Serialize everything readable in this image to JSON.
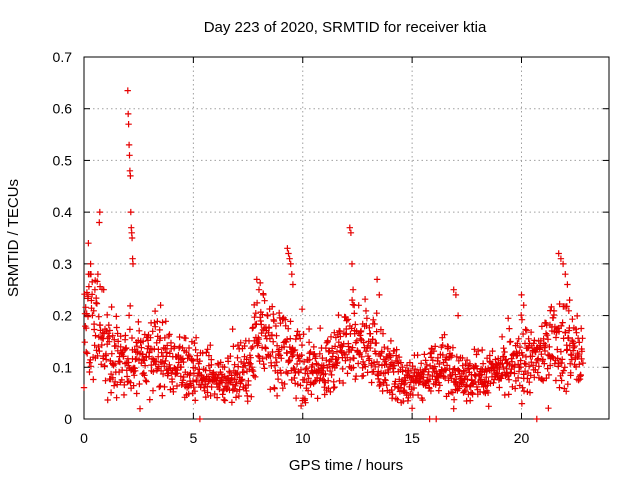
{
  "chart_data": {
    "type": "scatter",
    "title": "Day 223 of 2020, SRMTID for receiver ktia",
    "xlabel": "GPS time / hours",
    "ylabel": "SRMTID / TECUs",
    "xlim": [
      0,
      24
    ],
    "ylim": [
      0,
      0.7
    ],
    "xticks": [
      0,
      5,
      10,
      15,
      20
    ],
    "yticks": [
      0,
      0.1,
      0.2,
      0.3,
      0.4,
      0.5,
      0.6,
      0.7
    ],
    "xtick_labels": [
      "0",
      "5",
      "10",
      "15",
      "20"
    ],
    "ytick_labels": [
      "0",
      "0.1",
      "0.2",
      "0.3",
      "0.4",
      "0.5",
      "0.6",
      "0.7"
    ],
    "grid": true,
    "marker": "plus",
    "color": "#e60000",
    "series": [
      {
        "name": "SRMTID",
        "data_range_hours": [
          0,
          22.8
        ],
        "profile": [
          [
            0.0,
            0.15,
            0.06
          ],
          [
            0.3,
            0.2,
            0.08
          ],
          [
            0.8,
            0.17,
            0.06
          ],
          [
            1.2,
            0.12,
            0.05
          ],
          [
            1.8,
            0.1,
            0.05
          ],
          [
            2.5,
            0.12,
            0.05
          ],
          [
            3.0,
            0.13,
            0.05
          ],
          [
            3.5,
            0.12,
            0.05
          ],
          [
            4.5,
            0.1,
            0.04
          ],
          [
            5.5,
            0.08,
            0.03
          ],
          [
            6.5,
            0.07,
            0.025
          ],
          [
            7.5,
            0.1,
            0.04
          ],
          [
            8.0,
            0.17,
            0.06
          ],
          [
            9.0,
            0.13,
            0.05
          ],
          [
            10.0,
            0.1,
            0.04
          ],
          [
            11.0,
            0.09,
            0.035
          ],
          [
            12.0,
            0.14,
            0.05
          ],
          [
            13.0,
            0.14,
            0.05
          ],
          [
            14.0,
            0.1,
            0.04
          ],
          [
            14.8,
            0.07,
            0.035
          ],
          [
            15.5,
            0.09,
            0.03
          ],
          [
            16.5,
            0.1,
            0.04
          ],
          [
            17.5,
            0.08,
            0.03
          ],
          [
            18.5,
            0.08,
            0.03
          ],
          [
            19.5,
            0.1,
            0.04
          ],
          [
            20.5,
            0.11,
            0.04
          ],
          [
            21.3,
            0.14,
            0.05
          ],
          [
            22.0,
            0.15,
            0.06
          ],
          [
            22.8,
            0.12,
            0.04
          ]
        ],
        "spikes": [
          [
            0.2,
            0.34
          ],
          [
            0.3,
            0.3
          ],
          [
            0.5,
            0.25
          ],
          [
            0.7,
            0.38
          ],
          [
            0.72,
            0.4
          ],
          [
            0.9,
            0.25
          ],
          [
            2.0,
            0.635
          ],
          [
            2.02,
            0.59
          ],
          [
            2.04,
            0.57
          ],
          [
            2.06,
            0.53
          ],
          [
            2.08,
            0.51
          ],
          [
            2.1,
            0.48
          ],
          [
            2.12,
            0.47
          ],
          [
            2.14,
            0.4
          ],
          [
            2.16,
            0.37
          ],
          [
            2.18,
            0.36
          ],
          [
            2.2,
            0.35
          ],
          [
            2.22,
            0.31
          ],
          [
            2.24,
            0.3
          ],
          [
            3.5,
            0.22
          ],
          [
            7.9,
            0.27
          ],
          [
            8.0,
            0.25
          ],
          [
            8.2,
            0.24
          ],
          [
            9.3,
            0.33
          ],
          [
            9.35,
            0.32
          ],
          [
            9.4,
            0.31
          ],
          [
            9.45,
            0.3
          ],
          [
            9.5,
            0.28
          ],
          [
            9.55,
            0.26
          ],
          [
            12.15,
            0.37
          ],
          [
            12.2,
            0.36
          ],
          [
            12.25,
            0.3
          ],
          [
            12.3,
            0.25
          ],
          [
            12.35,
            0.22
          ],
          [
            13.4,
            0.27
          ],
          [
            13.5,
            0.24
          ],
          [
            16.9,
            0.25
          ],
          [
            17.0,
            0.24
          ],
          [
            17.1,
            0.2
          ],
          [
            20.0,
            0.24
          ],
          [
            20.1,
            0.22
          ],
          [
            21.7,
            0.32
          ],
          [
            21.8,
            0.31
          ],
          [
            21.9,
            0.3
          ],
          [
            22.0,
            0.28
          ],
          [
            22.1,
            0.26
          ],
          [
            22.2,
            0.23
          ]
        ],
        "zero_points": [
          5.3,
          15.8,
          16.1,
          20.7
        ]
      }
    ]
  }
}
